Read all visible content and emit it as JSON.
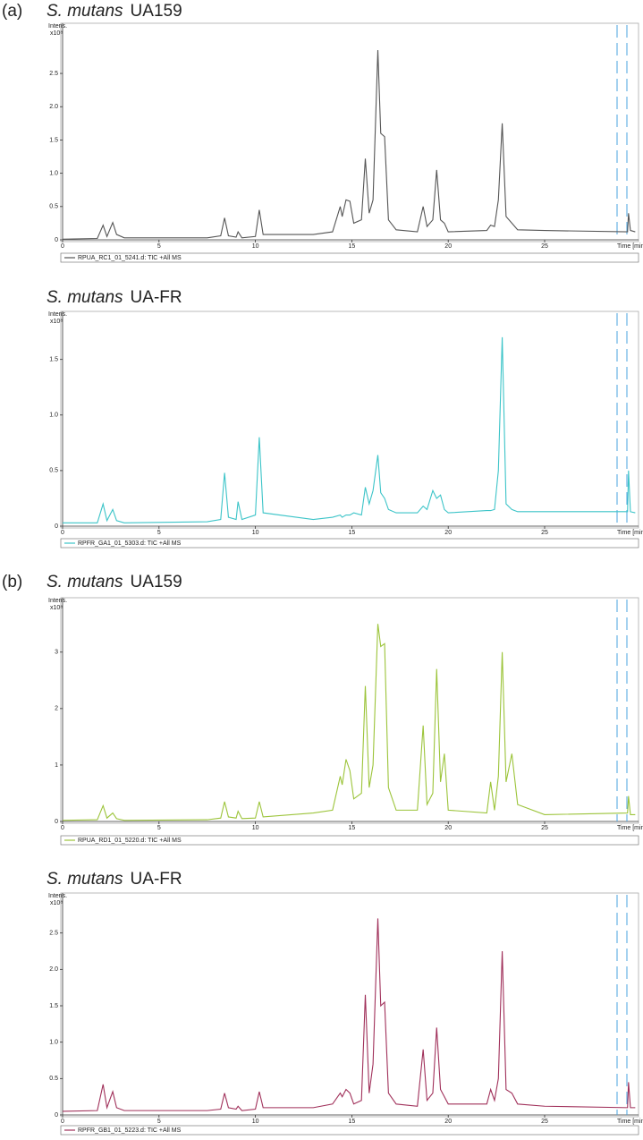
{
  "chart_data": [
    {
      "type": "line",
      "panel_label": "(a)",
      "title_italic": "S. mutans",
      "title": "UA159",
      "y_label": "Intens.",
      "y_unit": "x10⁸",
      "x_label": "Time [min]",
      "x": [
        0,
        1.8,
        2.1,
        2.3,
        2.6,
        2.8,
        3.2,
        7.5,
        8.2,
        8.4,
        8.6,
        9,
        9.1,
        9.3,
        10,
        10.2,
        10.4,
        13,
        14,
        14.4,
        14.5,
        14.7,
        14.9,
        15.1,
        15.5,
        15.7,
        15.9,
        16.1,
        16.35,
        16.5,
        16.7,
        16.9,
        17.3,
        18.4,
        18.7,
        18.9,
        19.2,
        19.4,
        19.6,
        19.8,
        20,
        22,
        22.2,
        22.4,
        22.6,
        22.8,
        23,
        23.3,
        23.6,
        25,
        29.3,
        29.35,
        29.45,
        29.7
      ],
      "series": [
        {
          "name": "RPUA_RC1_01_5241.d: TIC +All MS",
          "color": "#555555",
          "values": [
            0.01,
            0.02,
            0.22,
            0.05,
            0.26,
            0.08,
            0.03,
            0.03,
            0.06,
            0.33,
            0.06,
            0.04,
            0.12,
            0.03,
            0.05,
            0.45,
            0.08,
            0.08,
            0.12,
            0.5,
            0.35,
            0.6,
            0.58,
            0.25,
            0.3,
            1.22,
            0.4,
            0.6,
            2.85,
            1.6,
            1.55,
            0.3,
            0.15,
            0.12,
            0.5,
            0.2,
            0.3,
            1.05,
            0.3,
            0.25,
            0.12,
            0.14,
            0.22,
            0.2,
            0.6,
            1.75,
            0.35,
            0.25,
            0.15,
            0.14,
            0.12,
            0.4,
            0.14,
            0.12
          ]
        }
      ],
      "xlim": [
        0,
        29.8
      ],
      "xticks": [
        0,
        5,
        10,
        15,
        20,
        25
      ],
      "ylim": [
        0,
        3.2
      ],
      "yticks": [
        0,
        0.5,
        {
          "value": 1,
          "label": "1.0"
        },
        1.5,
        {
          "value": 2,
          "label": "2.0"
        },
        2.5
      ]
    },
    {
      "type": "line",
      "title_italic": "S. mutans",
      "title": "UA-FR",
      "y_label": "Intens.",
      "y_unit": "x10⁸",
      "x_label": "Time [min]",
      "x": [
        0,
        1.8,
        2.1,
        2.3,
        2.6,
        2.8,
        3.2,
        7.5,
        8.2,
        8.4,
        8.6,
        9,
        9.1,
        9.3,
        10,
        10.2,
        10.4,
        13,
        14,
        14.4,
        14.5,
        14.7,
        14.9,
        15.1,
        15.5,
        15.7,
        15.9,
        16.1,
        16.35,
        16.5,
        16.7,
        16.9,
        17.3,
        18.4,
        18.7,
        18.9,
        19.2,
        19.4,
        19.6,
        19.8,
        20,
        22,
        22.2,
        22.4,
        22.6,
        22.8,
        23,
        23.3,
        23.6,
        25,
        29.3,
        29.35,
        29.45,
        29.7
      ],
      "series": [
        {
          "name": "RPFR_GA1_01_5303.d: TIC +All MS",
          "color": "#3cc4c8",
          "values": [
            0.03,
            0.03,
            0.2,
            0.05,
            0.15,
            0.05,
            0.03,
            0.04,
            0.06,
            0.48,
            0.08,
            0.06,
            0.22,
            0.06,
            0.1,
            0.8,
            0.12,
            0.06,
            0.08,
            0.1,
            0.08,
            0.1,
            0.1,
            0.12,
            0.1,
            0.35,
            0.2,
            0.32,
            0.64,
            0.3,
            0.25,
            0.15,
            0.12,
            0.12,
            0.18,
            0.15,
            0.32,
            0.25,
            0.28,
            0.15,
            0.12,
            0.14,
            0.14,
            0.15,
            0.5,
            1.7,
            0.2,
            0.15,
            0.13,
            0.13,
            0.13,
            0.5,
            0.13,
            0.12
          ]
        }
      ],
      "xlim": [
        0,
        29.8
      ],
      "xticks": [
        0,
        5,
        10,
        15,
        20,
        25
      ],
      "ylim": [
        0,
        1.9
      ],
      "yticks": [
        0,
        0.5,
        {
          "value": 1,
          "label": "1.0"
        },
        1.5
      ]
    },
    {
      "type": "line",
      "panel_label": "(b)",
      "title_italic": "S. mutans",
      "title": "UA159",
      "y_label": "Intens.",
      "y_unit": "x10⁸",
      "x_label": "Time [min]",
      "x": [
        0,
        1.8,
        2.1,
        2.3,
        2.6,
        2.8,
        3.2,
        7.5,
        8.2,
        8.4,
        8.6,
        9,
        9.1,
        9.3,
        10,
        10.2,
        10.4,
        13,
        14,
        14.4,
        14.5,
        14.7,
        14.9,
        15.1,
        15.5,
        15.7,
        15.9,
        16.1,
        16.35,
        16.5,
        16.7,
        16.9,
        17.3,
        18.4,
        18.7,
        18.9,
        19.2,
        19.4,
        19.6,
        19.8,
        20,
        22,
        22.2,
        22.4,
        22.6,
        22.8,
        23,
        23.3,
        23.6,
        25,
        29.3,
        29.35,
        29.45,
        29.7
      ],
      "series": [
        {
          "name": "RPUA_RD1_01_5220.d: TIC +All MS",
          "color": "#9cc43a",
          "values": [
            0.02,
            0.03,
            0.28,
            0.06,
            0.15,
            0.05,
            0.02,
            0.03,
            0.06,
            0.35,
            0.08,
            0.06,
            0.18,
            0.05,
            0.06,
            0.35,
            0.08,
            0.15,
            0.2,
            0.8,
            0.65,
            1.1,
            0.9,
            0.4,
            0.5,
            2.4,
            0.6,
            1.0,
            3.5,
            3.1,
            3.15,
            0.6,
            0.2,
            0.2,
            1.7,
            0.3,
            0.5,
            2.7,
            0.7,
            1.2,
            0.2,
            0.15,
            0.7,
            0.2,
            0.8,
            3.0,
            0.7,
            1.2,
            0.3,
            0.12,
            0.15,
            0.45,
            0.12,
            0.12
          ]
        }
      ],
      "xlim": [
        0,
        29.8
      ],
      "xticks": [
        0,
        5,
        10,
        15,
        20,
        25
      ],
      "ylim": [
        0,
        3.9
      ],
      "yticks": [
        0,
        1,
        2,
        3
      ]
    },
    {
      "type": "line",
      "title_italic": "S. mutans",
      "title": "UA-FR",
      "y_label": "Intens.",
      "y_unit": "x10⁸",
      "x_label": "Time [min]",
      "x": [
        0,
        1.8,
        2.1,
        2.3,
        2.6,
        2.8,
        3.2,
        7.5,
        8.2,
        8.4,
        8.6,
        9,
        9.1,
        9.3,
        10,
        10.2,
        10.4,
        13,
        14,
        14.4,
        14.5,
        14.7,
        14.9,
        15.1,
        15.5,
        15.7,
        15.9,
        16.1,
        16.35,
        16.5,
        16.7,
        16.9,
        17.3,
        18.4,
        18.7,
        18.9,
        19.2,
        19.4,
        19.6,
        19.8,
        20,
        22,
        22.2,
        22.4,
        22.6,
        22.8,
        23,
        23.3,
        23.6,
        25,
        29.3,
        29.35,
        29.45,
        29.7
      ],
      "series": [
        {
          "name": "RPFR_GB1_01_5223.d: TIC +All MS",
          "color": "#a0305a",
          "values": [
            0.05,
            0.06,
            0.42,
            0.1,
            0.32,
            0.1,
            0.06,
            0.06,
            0.08,
            0.3,
            0.1,
            0.08,
            0.12,
            0.06,
            0.08,
            0.32,
            0.1,
            0.1,
            0.15,
            0.3,
            0.25,
            0.35,
            0.3,
            0.15,
            0.2,
            1.65,
            0.3,
            0.7,
            2.7,
            1.5,
            1.55,
            0.3,
            0.15,
            0.12,
            0.9,
            0.2,
            0.3,
            1.2,
            0.35,
            0.25,
            0.15,
            0.15,
            0.35,
            0.2,
            0.5,
            2.25,
            0.35,
            0.3,
            0.15,
            0.12,
            0.1,
            0.45,
            0.1,
            0.1
          ]
        }
      ],
      "xlim": [
        0,
        29.8
      ],
      "xticks": [
        0,
        5,
        10,
        15,
        20,
        25
      ],
      "ylim": [
        0,
        3.0
      ],
      "yticks": [
        0,
        0.5,
        {
          "value": 1,
          "label": "1.0"
        },
        1.5,
        {
          "value": 2,
          "label": "2.0"
        },
        2.5
      ]
    }
  ]
}
